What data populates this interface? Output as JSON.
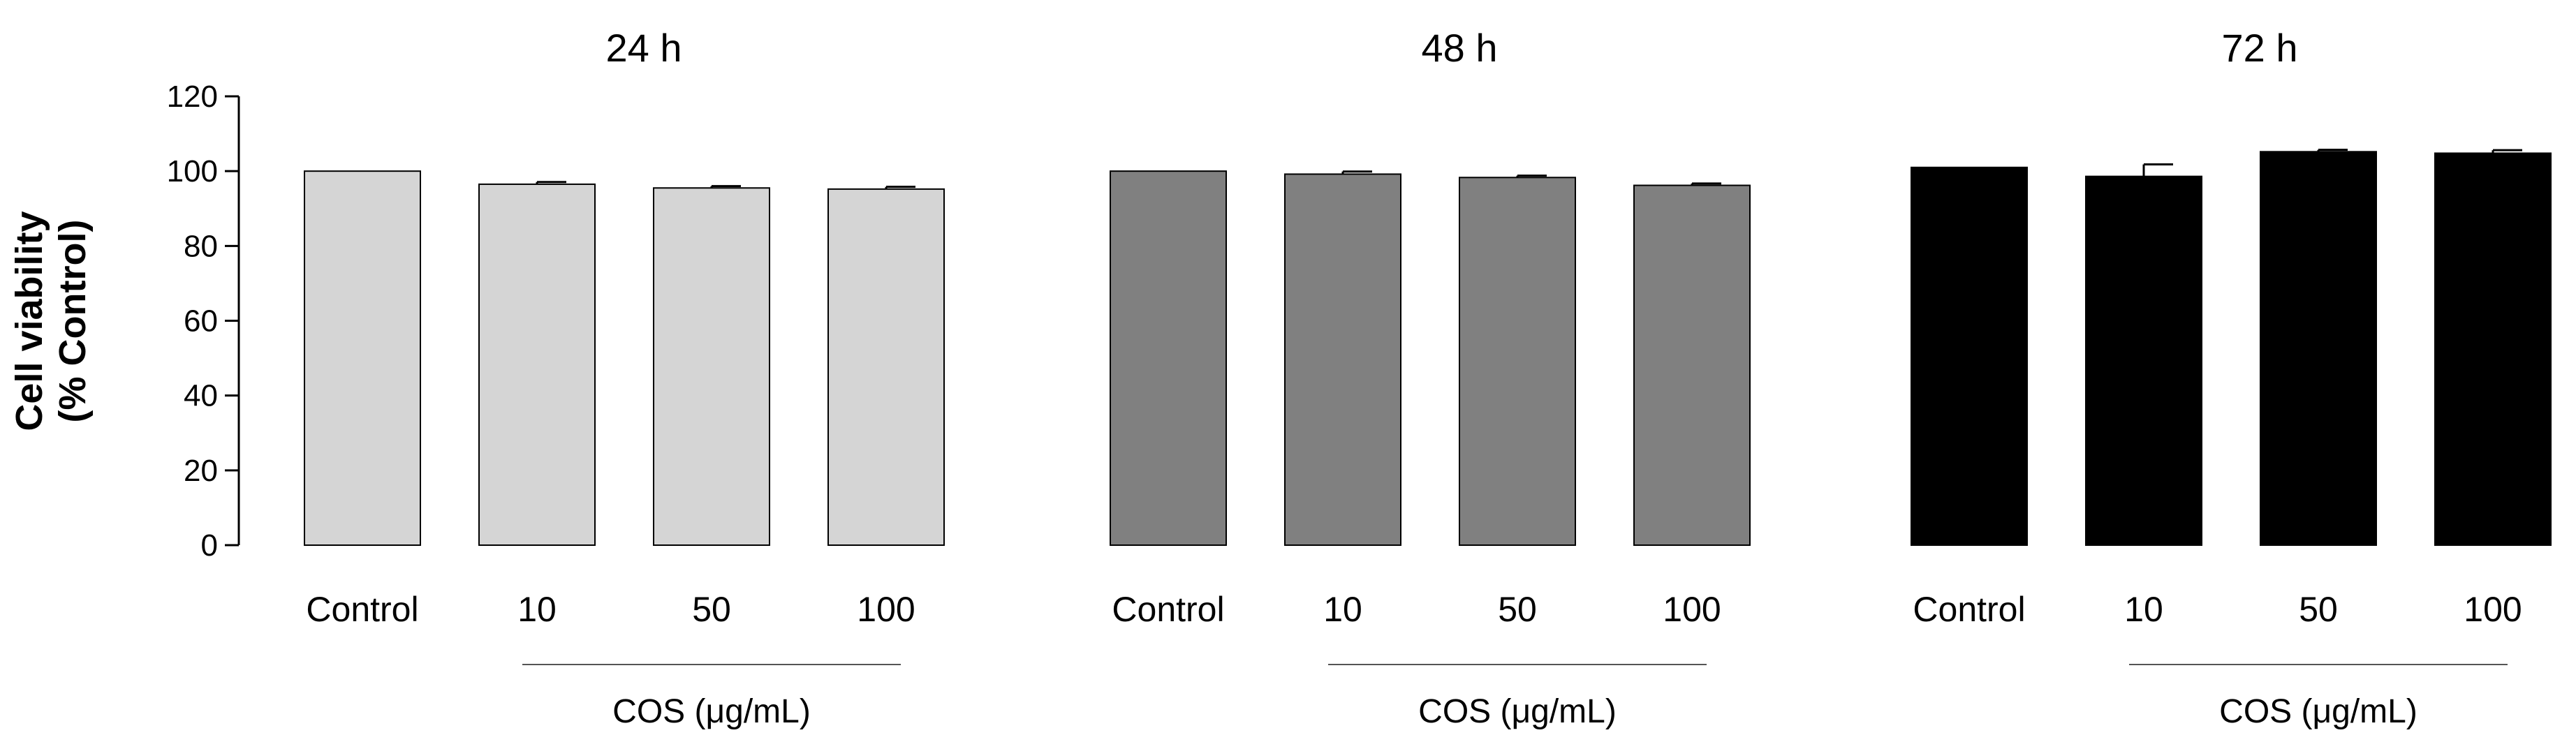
{
  "chart_data": {
    "type": "bar",
    "ylabel_line1": "Cell viability",
    "ylabel_line2": "(% Control)",
    "ylim": [
      0,
      120
    ],
    "yticks": [
      0,
      20,
      40,
      60,
      80,
      100,
      120
    ],
    "categories": [
      "Control",
      "10",
      "50",
      "100"
    ],
    "group_label": "COS (μg/mL)",
    "panels": [
      {
        "title": "24 h",
        "color": "#d5d5d5",
        "values": [
          100,
          96.5,
          95.5,
          95.2
        ],
        "errors": [
          0,
          0.6,
          0.5,
          0.6
        ]
      },
      {
        "title": "48 h",
        "color": "#808080",
        "values": [
          100,
          99.2,
          98.3,
          96.2
        ],
        "errors": [
          0,
          0.7,
          0.5,
          0.5
        ]
      },
      {
        "title": "72 h",
        "color": "#000000",
        "values": [
          101,
          98.6,
          105.2,
          104.8
        ],
        "errors": [
          0,
          3.2,
          0.5,
          0.8
        ]
      }
    ]
  }
}
